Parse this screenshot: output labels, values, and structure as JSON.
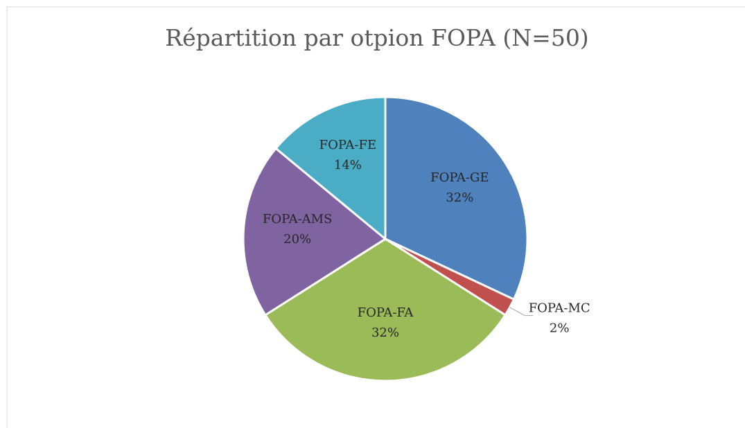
{
  "chart_data": {
    "type": "pie",
    "title": "Répartition par otpion FOPA (N=50)",
    "categories": [
      "FOPA-GE",
      "FOPA-MC",
      "FOPA-FA",
      "FOPA-AMS",
      "FOPA-FE"
    ],
    "values": [
      32,
      2,
      32,
      20,
      14
    ],
    "value_labels": [
      "32%",
      "2%",
      "32%",
      "20%",
      "14%"
    ],
    "colors": [
      "#4f81bd",
      "#c0504d",
      "#9bbb59",
      "#8064a2",
      "#4bacc6"
    ]
  }
}
